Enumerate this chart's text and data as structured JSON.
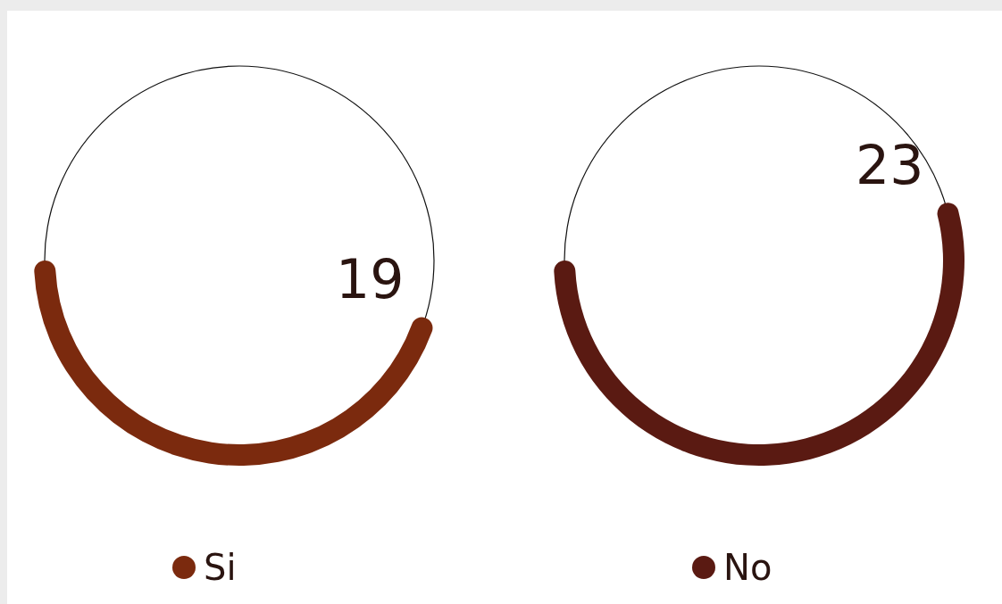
{
  "chart_data": {
    "type": "other",
    "categories": [
      "Si",
      "No"
    ],
    "values": [
      19,
      23
    ],
    "colors": [
      "#7b2a0e",
      "#5a1a12"
    ],
    "data_labels": true
  }
}
